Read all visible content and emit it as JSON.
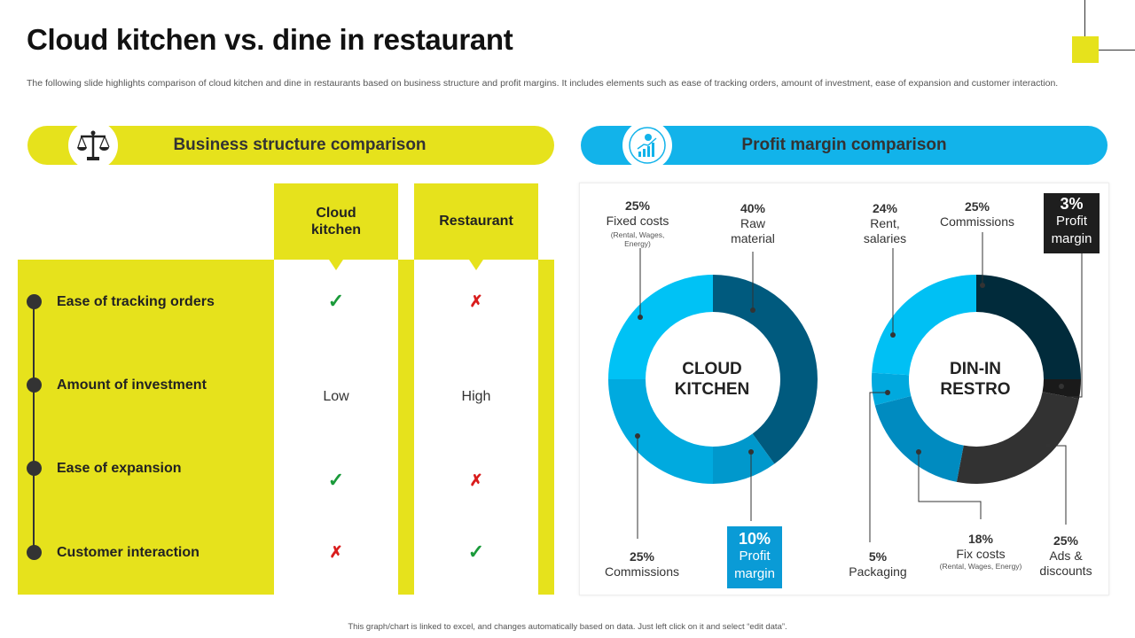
{
  "title": "Cloud kitchen vs. dine in restaurant",
  "description": "The following slide highlights comparison of cloud kitchen and dine in restaurants based on business structure and profit margins. It includes elements such as ease of tracking orders, amount of investment, ease of expansion and customer interaction.",
  "business": {
    "header": "Business structure comparison",
    "icon": "scales-icon",
    "columns": [
      "Cloud kitchen",
      "Restaurant"
    ],
    "rows": [
      {
        "label": "Ease of tracking orders",
        "cloud": "✓",
        "restaurant": "✗"
      },
      {
        "label": "Amount of investment",
        "cloud": "Low",
        "restaurant": "High"
      },
      {
        "label": "Ease of expansion",
        "cloud": "✓",
        "restaurant": "✗"
      },
      {
        "label": "Customer interaction",
        "cloud": "✗",
        "restaurant": "✓"
      }
    ]
  },
  "profit": {
    "header": "Profit margin comparison",
    "icon": "growth-chart-icon"
  },
  "colors": {
    "yellow": "#e6e21c",
    "blue": "#12b3ea",
    "cloud_segments": [
      "#005a7e",
      "#0098cc",
      "#00aadf",
      "#00c2f5"
    ],
    "restro_segments": [
      "#012b3b",
      "#1a1a1a",
      "#323232",
      "#008bc0",
      "#00a9de",
      "#00c0f4"
    ]
  },
  "chart_data": [
    {
      "type": "pie",
      "title": "CLOUD KITCHEN",
      "slices": [
        {
          "pct": "40%",
          "value": 40,
          "name": "Raw material"
        },
        {
          "pct": "10%",
          "value": 10,
          "name": "Profit margin"
        },
        {
          "pct": "25%",
          "value": 25,
          "name": "Commissions"
        },
        {
          "pct": "25%",
          "value": 25,
          "name": "Fixed costs",
          "note": "(Rental, Wages, Energy)"
        }
      ]
    },
    {
      "type": "pie",
      "title": "DIN-IN RESTRO",
      "slices": [
        {
          "pct": "25%",
          "value": 25,
          "name": "Commissions"
        },
        {
          "pct": "3%",
          "value": 3,
          "name": "Profit margin"
        },
        {
          "pct": "25%",
          "value": 25,
          "name": "Ads & discounts"
        },
        {
          "pct": "18%",
          "value": 18,
          "name": "Fix costs",
          "note": "(Rental, Wages, Energy)"
        },
        {
          "pct": "5%",
          "value": 5,
          "name": "Packaging"
        },
        {
          "pct": "24%",
          "value": 24,
          "name": "Rent, salaries"
        }
      ]
    }
  ],
  "footer": "This graph/chart is linked to excel, and changes automatically based on data. Just left click on it and select “edit data”."
}
